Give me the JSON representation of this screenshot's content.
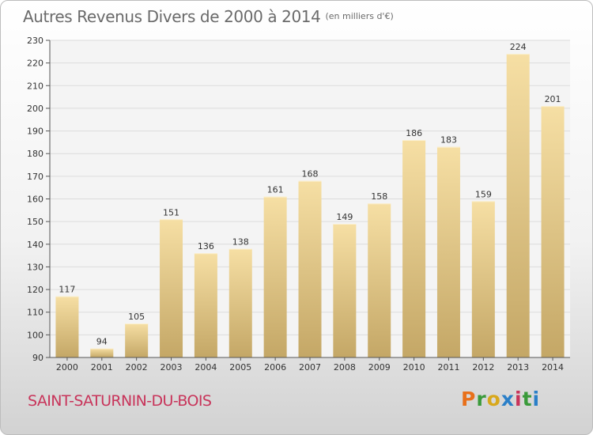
{
  "header": {
    "title": "Autres Revenus Divers de 2000 à 2014",
    "unit": "(en milliers d'€)"
  },
  "footer": {
    "commune": "SAINT-SATURNIN-DU-BOIS",
    "brand": "Proxiti",
    "brand_colors": [
      "#e8701a",
      "#3a9a3a",
      "#d8a81c",
      "#2a7fc8",
      "#c8345a",
      "#3a9a3a",
      "#2a7fc8"
    ]
  },
  "colors": {
    "bar_top": "#f6dfa4",
    "bar_bottom": "#c4a766",
    "axis": "#555555",
    "grid": "#dcdcdc",
    "plot_background": "#f4f4f4"
  },
  "chart_data": {
    "type": "bar",
    "title": "Autres Revenus Divers de 2000 à 2014",
    "subtitle": "(en milliers d'€)",
    "categories": [
      "2000",
      "2001",
      "2002",
      "2003",
      "2004",
      "2005",
      "2006",
      "2007",
      "2008",
      "2009",
      "2010",
      "2011",
      "2012",
      "2013",
      "2014"
    ],
    "values": [
      117,
      94,
      105,
      151,
      136,
      138,
      161,
      168,
      149,
      158,
      186,
      183,
      159,
      224,
      201
    ],
    "data_labels": [
      "117",
      "94",
      "105",
      "151",
      "136",
      "138",
      "161",
      "168",
      "149",
      "158",
      "186",
      "183",
      "159",
      "224",
      "201"
    ],
    "ylim": [
      90,
      230
    ],
    "yticks": [
      90,
      100,
      110,
      120,
      130,
      140,
      150,
      160,
      170,
      180,
      190,
      200,
      210,
      220,
      230
    ],
    "ytick_labels": [
      "90",
      "100",
      "110",
      "120",
      "130",
      "140",
      "150",
      "160",
      "170",
      "180",
      "190",
      "200",
      "210",
      "220",
      "230"
    ],
    "grid": true,
    "legend": "none"
  }
}
